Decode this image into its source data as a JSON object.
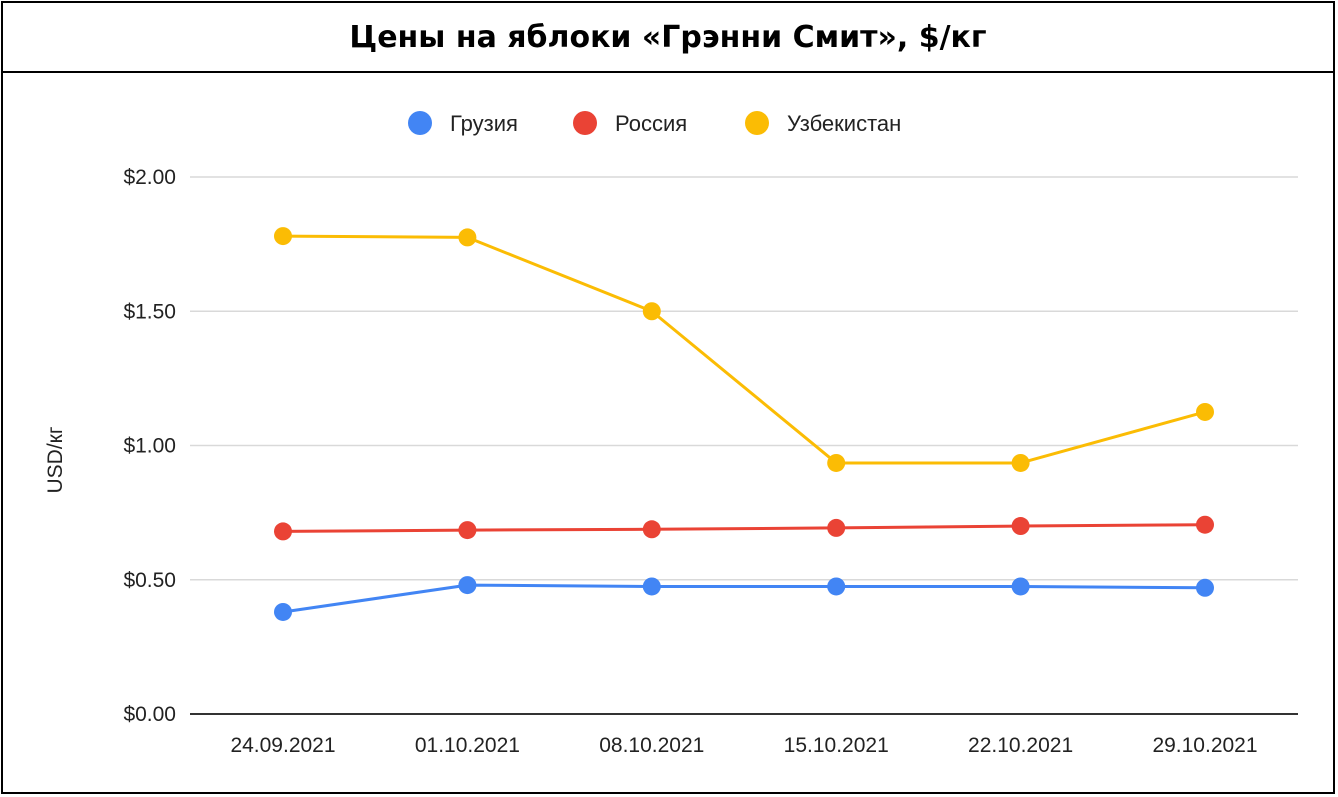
{
  "chart_data": {
    "type": "line",
    "title": "Цены на яблоки «Грэнни Смит», $/кг",
    "ylabel": "USD/кг",
    "xlabel": "",
    "ylim": [
      0,
      2
    ],
    "y_ticks": [
      "$0.00",
      "$0.50",
      "$1.00",
      "$1.50",
      "$2.00"
    ],
    "y_tick_values": [
      0,
      0.5,
      1.0,
      1.5,
      2.0
    ],
    "categories": [
      "24.09.2021",
      "01.10.2021",
      "08.10.2021",
      "15.10.2021",
      "22.10.2021",
      "29.10.2021"
    ],
    "grid": true,
    "legend_position": "top",
    "series": [
      {
        "name": "Грузия",
        "color": "#4285F4",
        "values": [
          0.38,
          0.48,
          0.475,
          0.475,
          0.475,
          0.47
        ]
      },
      {
        "name": "Россия",
        "color": "#EA4335",
        "values": [
          0.68,
          0.685,
          0.688,
          0.693,
          0.7,
          0.705
        ]
      },
      {
        "name": "Узбекистан",
        "color": "#FBBC04",
        "values": [
          1.78,
          1.775,
          1.5,
          0.935,
          0.935,
          1.125
        ]
      }
    ]
  }
}
